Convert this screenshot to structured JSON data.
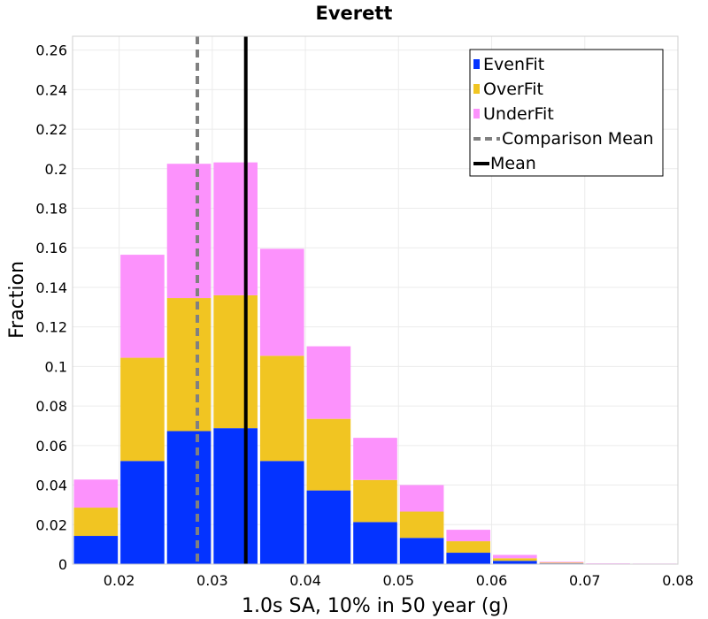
{
  "chart_data": {
    "type": "bar",
    "stacked": true,
    "title": "Everett",
    "xlabel": "1.0s SA, 10% in 50 year (g)",
    "ylabel": "Fraction",
    "xlim": [
      0.015,
      0.08
    ],
    "ylim": [
      0,
      0.267
    ],
    "bin_width": 0.005,
    "x_ticks": [
      0.02,
      0.03,
      0.04,
      0.05,
      0.06,
      0.07,
      0.08
    ],
    "x_tick_labels": [
      "0.02",
      "0.03",
      "0.04",
      "0.05",
      "0.06",
      "0.07",
      "0.08"
    ],
    "y_ticks": [
      0,
      0.02,
      0.04,
      0.06,
      0.08,
      0.1,
      0.12,
      0.14,
      0.16,
      0.18,
      0.2,
      0.22,
      0.24,
      0.26
    ],
    "y_tick_labels": [
      "0",
      "0.02",
      "0.04",
      "0.06",
      "0.08",
      "0.1",
      "0.12",
      "0.14",
      "0.16",
      "0.18",
      "0.2",
      "0.22",
      "0.24",
      "0.26"
    ],
    "x": [
      0.0175,
      0.0225,
      0.0275,
      0.0325,
      0.0375,
      0.0425,
      0.0475,
      0.0525,
      0.0575,
      0.0625,
      0.0675,
      0.0725,
      0.0775
    ],
    "series": [
      {
        "name": "EvenFit",
        "color": "#0433ff",
        "values": [
          0.0143,
          0.0522,
          0.0673,
          0.0688,
          0.0522,
          0.0373,
          0.0213,
          0.0133,
          0.0058,
          0.0017,
          0.0004,
          0.0001,
          0.0001
        ]
      },
      {
        "name": "OverFit",
        "color": "#f1c522",
        "values": [
          0.0143,
          0.0522,
          0.0673,
          0.0672,
          0.0532,
          0.0362,
          0.0213,
          0.0133,
          0.0058,
          0.0013,
          0.0004,
          0.0001,
          0.0001
        ]
      },
      {
        "name": "UnderFit",
        "color": "#fc92fc",
        "values": [
          0.0142,
          0.0521,
          0.0679,
          0.0672,
          0.0541,
          0.0367,
          0.0213,
          0.0134,
          0.0058,
          0.0017,
          0.0004,
          0.0002,
          0.0001
        ]
      }
    ],
    "lines": [
      {
        "name": "Comparison Mean",
        "x": 0.0284,
        "color": "#808080",
        "style": "dashed"
      },
      {
        "name": "Mean",
        "x": 0.0336,
        "color": "#000000",
        "style": "solid"
      }
    ],
    "legend": {
      "position": "top-right",
      "items": [
        {
          "label": "EvenFit",
          "kind": "box",
          "color": "#0433ff"
        },
        {
          "label": "OverFit",
          "kind": "box",
          "color": "#f1c522"
        },
        {
          "label": "UnderFit",
          "kind": "box",
          "color": "#fc92fc"
        },
        {
          "label": "Comparison Mean",
          "kind": "dashed",
          "color": "#808080"
        },
        {
          "label": "Mean",
          "kind": "solid",
          "color": "#000000"
        }
      ]
    },
    "grid": true
  }
}
